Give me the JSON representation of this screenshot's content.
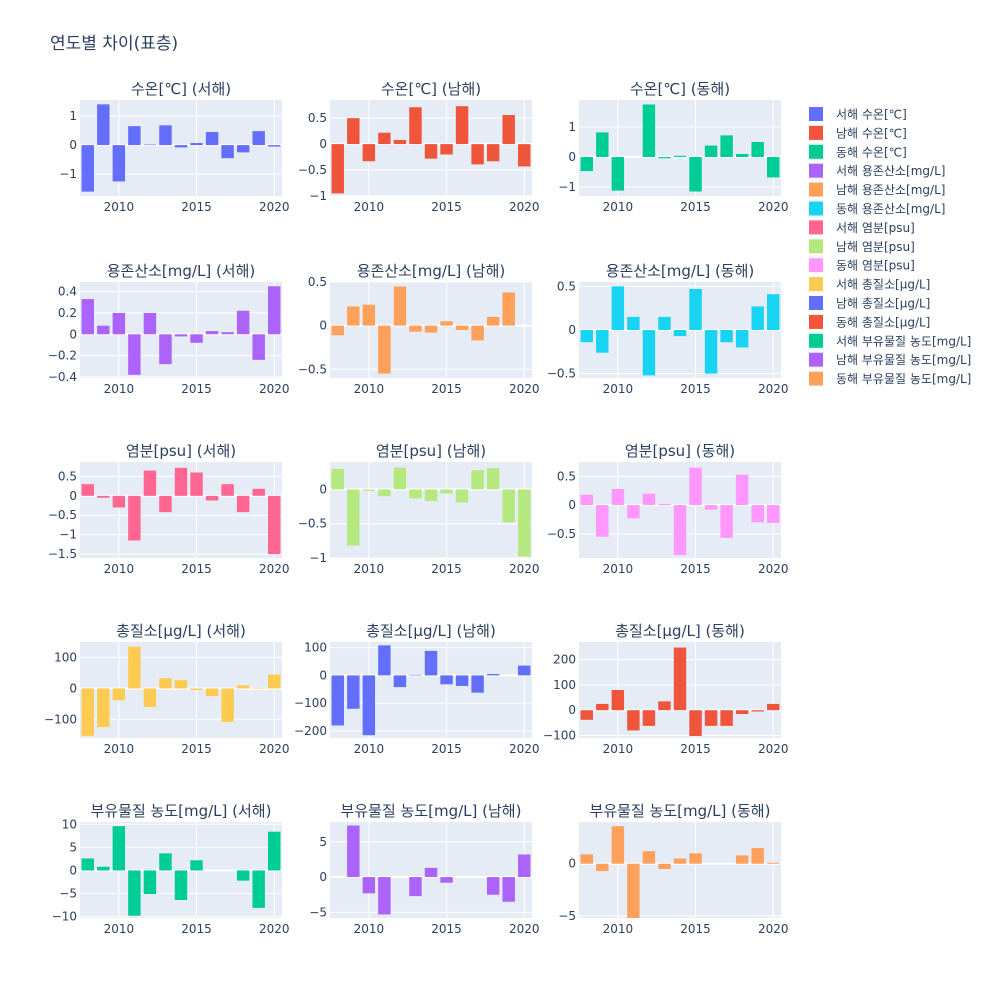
{
  "title": "연도별 차이(표층)",
  "colors": {
    "plot_bg": "#e5ecf6",
    "grid": "#ffffff",
    "text": "#2a3f5f"
  },
  "legend": [
    {
      "label": "서해 수온[℃]",
      "color": "#636efa"
    },
    {
      "label": "남해 수온[℃]",
      "color": "#ef553b"
    },
    {
      "label": "동해 수온[℃]",
      "color": "#00cc96"
    },
    {
      "label": "서해 용존산소[mg/L]",
      "color": "#ab63fa"
    },
    {
      "label": "남해 용존산소[mg/L]",
      "color": "#ffa15a"
    },
    {
      "label": "동해 용존산소[mg/L]",
      "color": "#19d3f3"
    },
    {
      "label": "서해 염분[psu]",
      "color": "#ff6692"
    },
    {
      "label": "남해 염분[psu]",
      "color": "#b6e880"
    },
    {
      "label": "동해 염분[psu]",
      "color": "#ff97ff"
    },
    {
      "label": "서해 총질소[μg/L]",
      "color": "#fecb52"
    },
    {
      "label": "남해 총질소[μg/L]",
      "color": "#636efa"
    },
    {
      "label": "동해 총질소[μg/L]",
      "color": "#ef553b"
    },
    {
      "label": "서해 부유물질 농도[mg/L]",
      "color": "#00cc96"
    },
    {
      "label": "남해 부유물질 농도[mg/L]",
      "color": "#ab63fa"
    },
    {
      "label": "동해 부유물질 농도[mg/L]",
      "color": "#ffa15a"
    }
  ],
  "chart_data": [
    {
      "type": "bar",
      "title": "수온[℃] (서해)",
      "color": "#636efa",
      "x": [
        2008,
        2009,
        2010,
        2011,
        2012,
        2013,
        2014,
        2015,
        2016,
        2017,
        2018,
        2019,
        2020
      ],
      "values": [
        -1.6,
        1.4,
        -1.25,
        0.65,
        0.02,
        0.68,
        -0.08,
        0.07,
        0.45,
        -0.45,
        -0.25,
        0.48,
        -0.05
      ],
      "ylim": [
        -1.75,
        1.55
      ],
      "yticks": [
        -1,
        0,
        1
      ],
      "xticks": [
        2010,
        2015,
        2020
      ]
    },
    {
      "type": "bar",
      "title": "수온[℃] (남해)",
      "color": "#ef553b",
      "x": [
        2008,
        2009,
        2010,
        2011,
        2012,
        2013,
        2014,
        2015,
        2016,
        2017,
        2018,
        2019,
        2020
      ],
      "values": [
        -0.95,
        0.5,
        -0.33,
        0.22,
        0.08,
        0.71,
        -0.28,
        -0.2,
        0.73,
        -0.39,
        -0.33,
        0.56,
        -0.43
      ],
      "ylim": [
        -1.0,
        0.85
      ],
      "yticks": [
        -1,
        -0.5,
        0,
        0.5
      ],
      "ytick_labels": [
        "−1",
        "−0.5",
        "0",
        "0.5"
      ],
      "xticks": [
        2010,
        2015,
        2020
      ]
    },
    {
      "type": "bar",
      "title": "수온[℃] (동해)",
      "color": "#00cc96",
      "x": [
        2008,
        2009,
        2010,
        2011,
        2012,
        2013,
        2014,
        2015,
        2016,
        2017,
        2018,
        2019,
        2020
      ],
      "values": [
        -0.47,
        0.82,
        -1.12,
        0.0,
        1.75,
        -0.04,
        0.04,
        -1.15,
        0.38,
        0.72,
        0.1,
        0.5,
        -0.68
      ],
      "ylim": [
        -1.3,
        1.9
      ],
      "yticks": [
        -1,
        0,
        1
      ],
      "xticks": [
        2010,
        2015,
        2020
      ]
    },
    {
      "type": "bar",
      "title": "용존산소[mg/L] (서해)",
      "color": "#ab63fa",
      "x": [
        2008,
        2009,
        2010,
        2011,
        2012,
        2013,
        2014,
        2015,
        2016,
        2017,
        2018,
        2019,
        2020
      ],
      "values": [
        0.33,
        0.08,
        0.2,
        -0.38,
        0.2,
        -0.28,
        -0.02,
        -0.08,
        0.03,
        0.02,
        0.22,
        -0.24,
        0.45
      ],
      "ylim": [
        -0.41,
        0.49
      ],
      "yticks": [
        -0.4,
        -0.2,
        0,
        0.2,
        0.4
      ],
      "ytick_labels": [
        "−0.4",
        "−0.2",
        "0",
        "0.2",
        "0.4"
      ],
      "xticks": [
        2010,
        2015,
        2020
      ]
    },
    {
      "type": "bar",
      "title": "용존산소[mg/L] (남해)",
      "color": "#ffa15a",
      "x": [
        2008,
        2009,
        2010,
        2011,
        2012,
        2013,
        2014,
        2015,
        2016,
        2017,
        2018,
        2019,
        2020
      ],
      "values": [
        -0.11,
        0.22,
        0.24,
        -0.55,
        0.45,
        -0.07,
        -0.08,
        0.05,
        -0.05,
        -0.17,
        0.1,
        0.38,
        0.0
      ],
      "ylim": [
        -0.6,
        0.5
      ],
      "yticks": [
        -0.5,
        0,
        0.5
      ],
      "ytick_labels": [
        "−0.5",
        "0",
        "0.5"
      ],
      "xticks": [
        2010,
        2015,
        2020
      ]
    },
    {
      "type": "bar",
      "title": "용존산소[mg/L] (동해)",
      "color": "#19d3f3",
      "x": [
        2008,
        2009,
        2010,
        2011,
        2012,
        2013,
        2014,
        2015,
        2016,
        2017,
        2018,
        2019,
        2020
      ],
      "values": [
        -0.14,
        -0.26,
        0.5,
        0.15,
        -0.52,
        0.15,
        -0.07,
        0.47,
        -0.5,
        -0.14,
        -0.2,
        0.27,
        0.41
      ],
      "ylim": [
        -0.55,
        0.55
      ],
      "yticks": [
        -0.5,
        0,
        0.5
      ],
      "ytick_labels": [
        "−0.5",
        "0",
        "0.5"
      ],
      "xticks": [
        2010,
        2015,
        2020
      ]
    },
    {
      "type": "bar",
      "title": "염분[psu] (서해)",
      "color": "#ff6692",
      "x": [
        2008,
        2009,
        2010,
        2011,
        2012,
        2013,
        2014,
        2015,
        2016,
        2017,
        2018,
        2019,
        2020
      ],
      "values": [
        0.3,
        -0.05,
        -0.3,
        -1.15,
        0.65,
        -0.42,
        0.72,
        0.6,
        -0.12,
        0.3,
        -0.42,
        0.18,
        -1.5
      ],
      "ylim": [
        -1.6,
        0.87
      ],
      "yticks": [
        -1.5,
        -1,
        -0.5,
        0,
        0.5
      ],
      "ytick_labels": [
        "−1.5",
        "−1",
        "−0.5",
        "0",
        "0.5"
      ],
      "xticks": [
        2010,
        2015,
        2020
      ]
    },
    {
      "type": "bar",
      "title": "염분[psu] (남해)",
      "color": "#b6e880",
      "x": [
        2008,
        2009,
        2010,
        2011,
        2012,
        2013,
        2014,
        2015,
        2016,
        2017,
        2018,
        2019,
        2020
      ],
      "values": [
        0.3,
        -0.82,
        -0.02,
        -0.1,
        0.32,
        -0.13,
        -0.17,
        -0.06,
        -0.19,
        0.28,
        0.31,
        -0.48,
        -0.98
      ],
      "ylim": [
        -1.0,
        0.4
      ],
      "yticks": [
        -1,
        -0.5,
        0
      ],
      "ytick_labels": [
        "−1",
        "−0.5",
        "0"
      ],
      "xticks": [
        2010,
        2015,
        2020
      ]
    },
    {
      "type": "bar",
      "title": "염분[psu] (동해)",
      "color": "#ff97ff",
      "x": [
        2008,
        2009,
        2010,
        2011,
        2012,
        2013,
        2014,
        2015,
        2016,
        2017,
        2018,
        2019,
        2020
      ],
      "values": [
        0.18,
        -0.55,
        0.28,
        -0.23,
        0.2,
        0.02,
        -0.87,
        0.65,
        -0.08,
        -0.57,
        0.53,
        -0.3,
        -0.31
      ],
      "ylim": [
        -0.92,
        0.75
      ],
      "yticks": [
        -0.5,
        0,
        0.5
      ],
      "ytick_labels": [
        "−0.5",
        "0",
        "0.5"
      ],
      "xticks": [
        2010,
        2015,
        2020
      ]
    },
    {
      "type": "bar",
      "title": "총질소[μg/L] (서해)",
      "color": "#fecb52",
      "x": [
        2008,
        2009,
        2010,
        2011,
        2012,
        2013,
        2014,
        2015,
        2016,
        2017,
        2018,
        2019,
        2020
      ],
      "values": [
        -153,
        -125,
        -38,
        135,
        -60,
        33,
        27,
        -5,
        -25,
        -108,
        10,
        2,
        45
      ],
      "ylim": [
        -160,
        150
      ],
      "yticks": [
        -100,
        0,
        100
      ],
      "ytick_labels": [
        "−100",
        "0",
        "100"
      ],
      "xticks": [
        2010,
        2015,
        2020
      ]
    },
    {
      "type": "bar",
      "title": "총질소[μg/L] (남해)",
      "color": "#636efa",
      "x": [
        2008,
        2009,
        2010,
        2011,
        2012,
        2013,
        2014,
        2015,
        2016,
        2017,
        2018,
        2019,
        2020
      ],
      "values": [
        -180,
        -120,
        -215,
        108,
        -42,
        2,
        88,
        -32,
        -38,
        -62,
        5,
        0,
        35
      ],
      "ylim": [
        -225,
        120
      ],
      "yticks": [
        -200,
        -100,
        0,
        100
      ],
      "ytick_labels": [
        "−200",
        "−100",
        "0",
        "100"
      ],
      "xticks": [
        2010,
        2015,
        2020
      ]
    },
    {
      "type": "bar",
      "title": "총질소[μg/L] (동해)",
      "color": "#ef553b",
      "x": [
        2008,
        2009,
        2010,
        2011,
        2012,
        2013,
        2014,
        2015,
        2016,
        2017,
        2018,
        2019,
        2020
      ],
      "values": [
        -38,
        25,
        80,
        -80,
        -62,
        35,
        248,
        -102,
        -62,
        -62,
        -15,
        -5,
        25
      ],
      "ylim": [
        -110,
        270
      ],
      "yticks": [
        -100,
        0,
        100,
        200
      ],
      "ytick_labels": [
        "−100",
        "0",
        "100",
        "200"
      ],
      "xticks": [
        2010,
        2015,
        2020
      ]
    },
    {
      "type": "bar",
      "title": "부유물질 농도[mg/L] (서해)",
      "color": "#00cc96",
      "x": [
        2008,
        2009,
        2010,
        2011,
        2012,
        2013,
        2014,
        2015,
        2016,
        2017,
        2018,
        2019,
        2020
      ],
      "values": [
        2.6,
        0.8,
        9.6,
        -9.8,
        -5.1,
        3.7,
        -6.4,
        2.2,
        0.0,
        0.0,
        -2.2,
        -8.1,
        8.4
      ],
      "ylim": [
        -10.3,
        10.5
      ],
      "yticks": [
        -10,
        -5,
        0,
        5,
        10
      ],
      "ytick_labels": [
        "−10",
        "−5",
        "0",
        "5",
        "10"
      ],
      "xticks": [
        2010,
        2015,
        2020
      ]
    },
    {
      "type": "bar",
      "title": "부유물질 농도[mg/L] (남해)",
      "color": "#ab63fa",
      "x": [
        2008,
        2009,
        2010,
        2011,
        2012,
        2013,
        2014,
        2015,
        2016,
        2017,
        2018,
        2019,
        2020
      ],
      "values": [
        0.0,
        7.3,
        -2.3,
        -5.3,
        0.0,
        -2.7,
        1.3,
        -0.8,
        0.0,
        0.0,
        -2.5,
        -3.5,
        3.2
      ],
      "ylim": [
        -5.8,
        7.8
      ],
      "yticks": [
        -5,
        0,
        5
      ],
      "ytick_labels": [
        "−5",
        "0",
        "5"
      ],
      "xticks": [
        2010,
        2015,
        2020
      ]
    },
    {
      "type": "bar",
      "title": "부유물질 농도[mg/L] (동해)",
      "color": "#ffa15a",
      "x": [
        2008,
        2009,
        2010,
        2011,
        2012,
        2013,
        2014,
        2015,
        2016,
        2017,
        2018,
        2019,
        2020
      ],
      "values": [
        0.9,
        -0.7,
        3.6,
        -5.2,
        1.2,
        -0.5,
        0.5,
        1.0,
        0.0,
        0.0,
        0.8,
        1.5,
        0.1
      ],
      "ylim": [
        -5.2,
        4.0
      ],
      "yticks": [
        -5,
        0
      ],
      "ytick_labels": [
        "−5",
        "0"
      ],
      "xticks": [
        2010,
        2015,
        2020
      ]
    }
  ]
}
